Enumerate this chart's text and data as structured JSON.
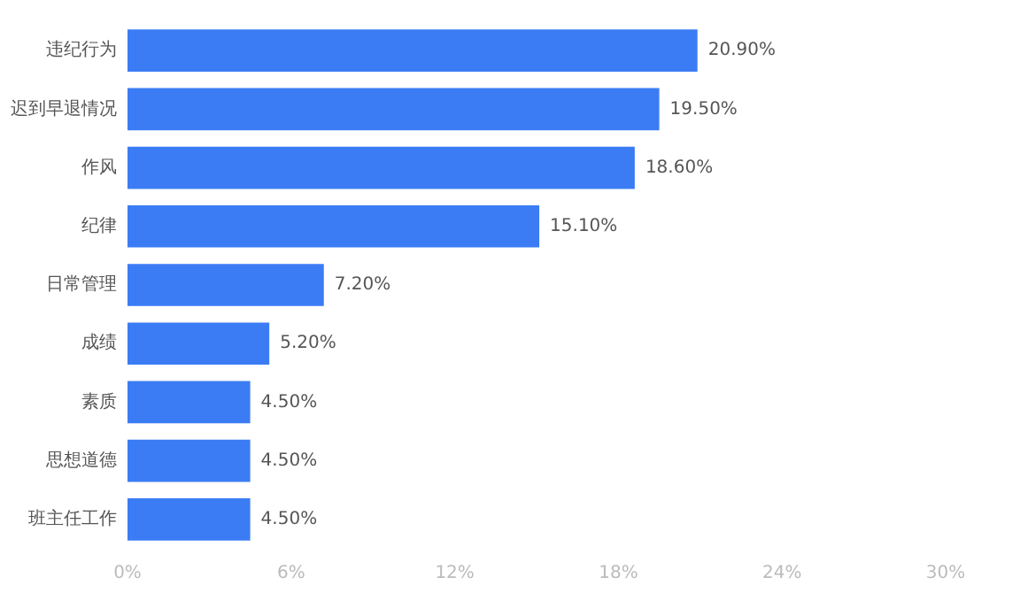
{
  "chart_data": {
    "type": "bar",
    "orientation": "horizontal",
    "categories": [
      "违纪行为",
      "迟到早退情况",
      "作风",
      "纪律",
      "日常管理",
      "成绩",
      "素质",
      "思想道德",
      "班主任工作"
    ],
    "values": [
      20.9,
      19.5,
      18.6,
      15.1,
      7.2,
      5.2,
      4.5,
      4.5,
      4.5
    ],
    "value_labels": [
      "20.90%",
      "19.50%",
      "18.60%",
      "15.10%",
      "7.20%",
      "5.20%",
      "4.50%",
      "4.50%",
      "4.50%"
    ],
    "color": "#3b7cf4",
    "xlim": [
      0,
      30
    ],
    "xticks": [
      {
        "value": 0,
        "label": "0%"
      },
      {
        "value": 6,
        "label": "6%"
      },
      {
        "value": 12,
        "label": "12%"
      },
      {
        "value": 18,
        "label": "18%"
      },
      {
        "value": 24,
        "label": "24%"
      },
      {
        "value": 30,
        "label": "30%"
      }
    ],
    "grid": false,
    "legend": false
  }
}
